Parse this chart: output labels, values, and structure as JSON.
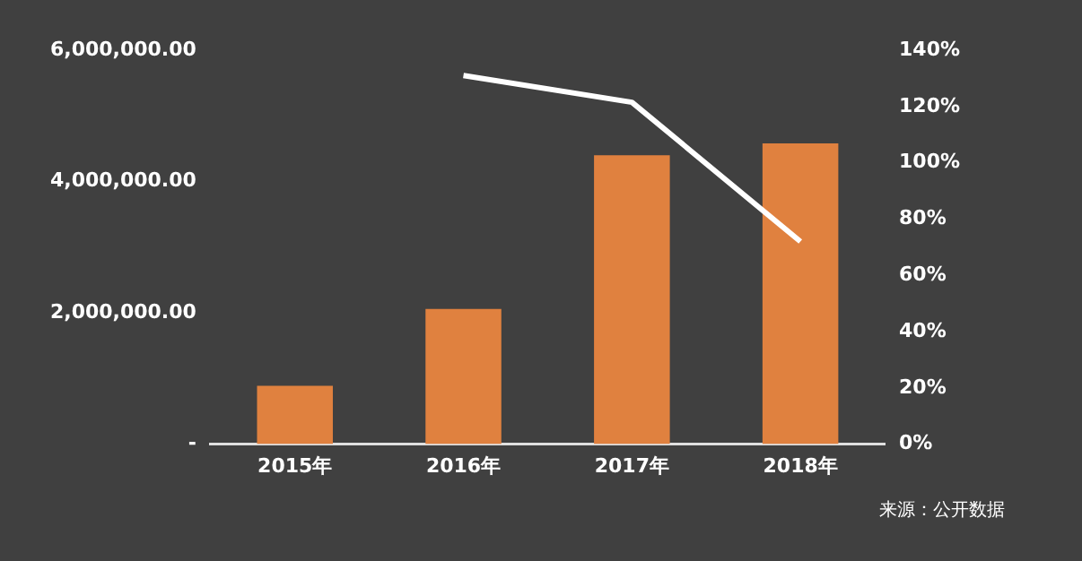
{
  "chart_data": {
    "type": "bar",
    "categories": [
      "2015年",
      "2016年",
      "2017年",
      "2018年"
    ],
    "series": [
      {
        "color": "#e0813f",
        "values": [
          890000,
          2060000,
          4400000,
          4580000
        ]
      },
      {
        "type": "line",
        "color": "#ffffff",
        "axis": "y2",
        "values": [
          null,
          131,
          121.5,
          72
        ]
      }
    ],
    "ylim": [
      0,
      6000000
    ],
    "yticks": [
      {
        "value": 0,
        "label": "-"
      },
      {
        "value": 2000000,
        "label": "2,000,000.00"
      },
      {
        "value": 4000000,
        "label": "4,000,000.00"
      },
      {
        "value": 6000000,
        "label": "6,000,000.00"
      }
    ],
    "y2lim": [
      0,
      140
    ],
    "y2ticks": [
      {
        "value": 0,
        "label": "0%"
      },
      {
        "value": 20,
        "label": "20%"
      },
      {
        "value": 40,
        "label": "40%"
      },
      {
        "value": 60,
        "label": "60%"
      },
      {
        "value": 80,
        "label": "80%"
      },
      {
        "value": 100,
        "label": "100%"
      },
      {
        "value": 120,
        "label": "120%"
      },
      {
        "value": 140,
        "label": "140%"
      }
    ],
    "grid": false,
    "legend": false,
    "marker": "none",
    "annotations": [
      "来源：公开数据"
    ]
  }
}
